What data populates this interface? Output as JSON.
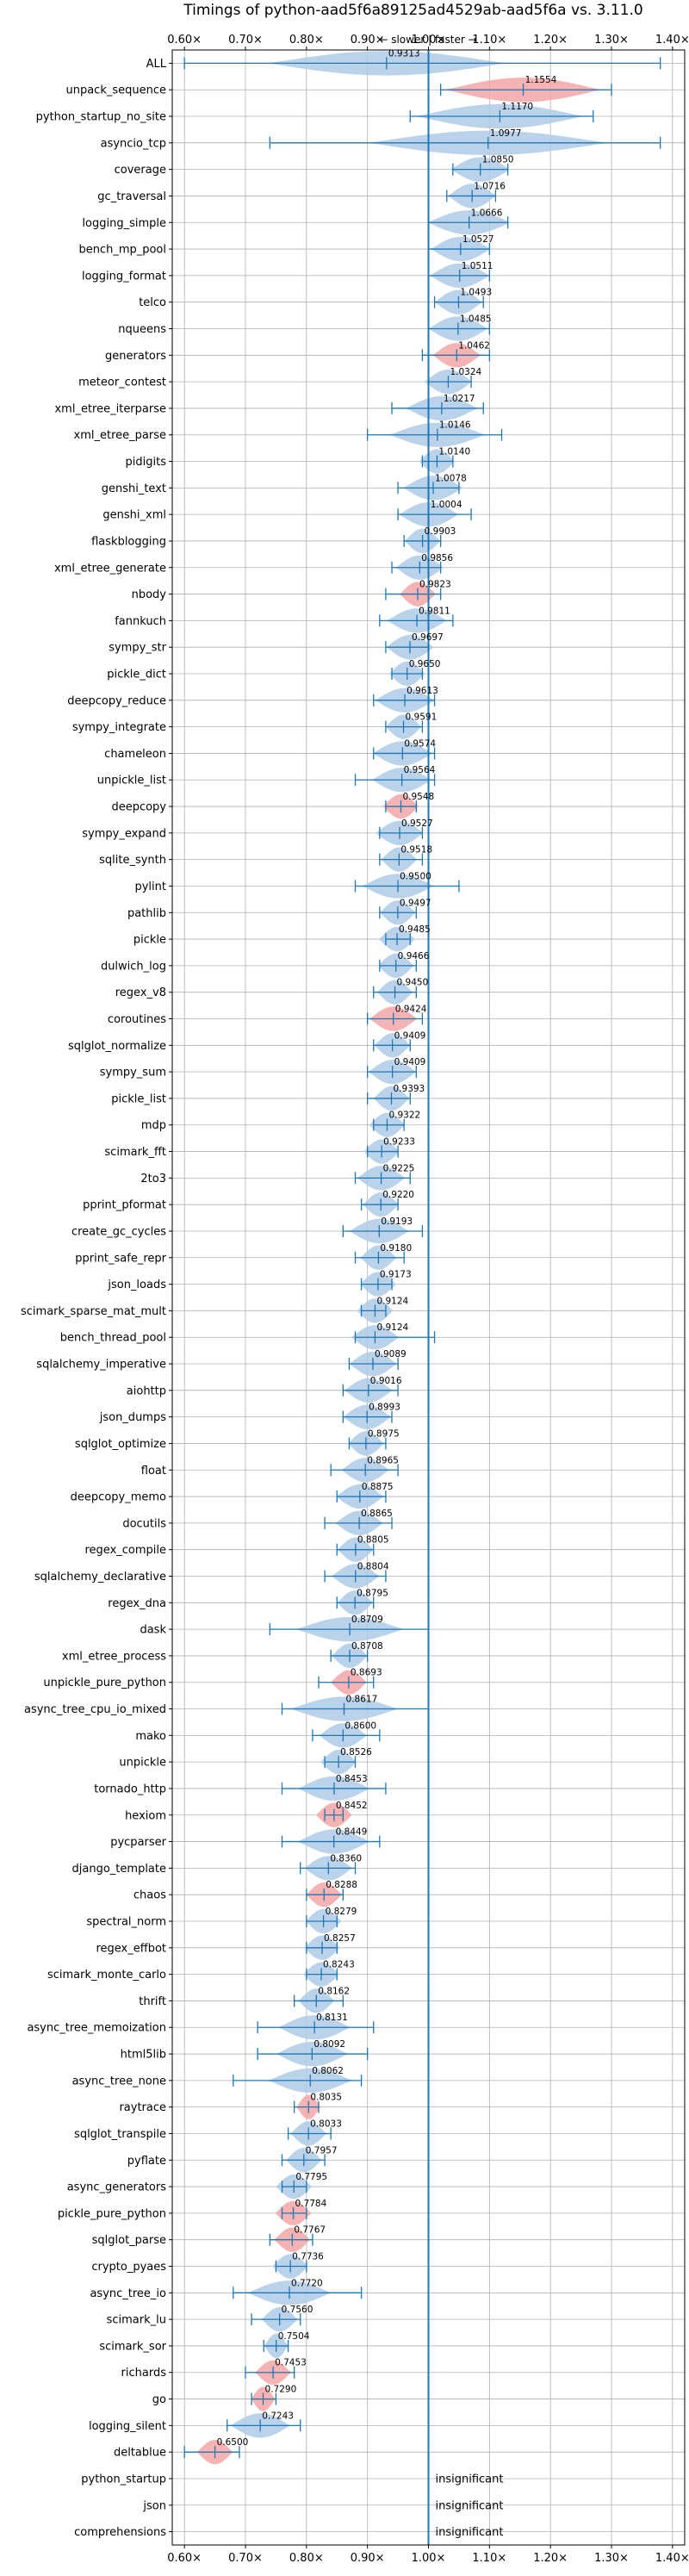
{
  "chart_data": {
    "type": "violin",
    "title": "Timings of python-aad5f6a89125ad4529ab-aad5f6a vs. 3.11.0",
    "direction_hint": "← slower | faster →",
    "xlim": [
      0.58,
      1.42
    ],
    "reference_x": 1.0,
    "grid": true,
    "x_ticks": [
      "0.60×",
      "0.70×",
      "0.80×",
      "0.90×",
      "1.00×",
      "1.10×",
      "1.20×",
      "1.30×",
      "1.40×"
    ],
    "x_tick_values": [
      0.6,
      0.7,
      0.8,
      0.9,
      1.0,
      1.1,
      1.2,
      1.3,
      1.4
    ],
    "insignificant_label": "insignificant",
    "colors": {
      "faster": "#aecbe7",
      "slower": "#f4a6a6",
      "errorbar": "#1f77b4",
      "reference": "#1f77b4",
      "grid": "#b0b0b0"
    },
    "benchmarks": [
      {
        "name": "ALL",
        "value": 0.9313,
        "value_label": "0.9313",
        "lo": 0.6,
        "hi": 1.38,
        "spread": 0.2,
        "color": "faster"
      },
      {
        "name": "unpack_sequence",
        "value": 1.1554,
        "value_label": "1.1554",
        "lo": 1.02,
        "hi": 1.3,
        "spread": 0.13,
        "color": "slower"
      },
      {
        "name": "python_startup_no_site",
        "value": 1.117,
        "value_label": "1.1170",
        "lo": 0.97,
        "hi": 1.27,
        "spread": 0.14,
        "color": "faster"
      },
      {
        "name": "asyncio_tcp",
        "value": 1.0977,
        "value_label": "1.0977",
        "lo": 0.74,
        "hi": 1.38,
        "spread": 0.2,
        "color": "faster"
      },
      {
        "name": "coverage",
        "value": 1.085,
        "value_label": "1.0850",
        "lo": 1.04,
        "hi": 1.13,
        "spread": 0.05,
        "color": "faster"
      },
      {
        "name": "gc_traversal",
        "value": 1.0716,
        "value_label": "1.0716",
        "lo": 1.03,
        "hi": 1.11,
        "spread": 0.04,
        "color": "faster"
      },
      {
        "name": "logging_simple",
        "value": 1.0666,
        "value_label": "1.0666",
        "lo": 1.0,
        "hi": 1.13,
        "spread": 0.07,
        "color": "faster"
      },
      {
        "name": "bench_mp_pool",
        "value": 1.0527,
        "value_label": "1.0527",
        "lo": 1.0,
        "hi": 1.1,
        "spread": 0.05,
        "color": "faster"
      },
      {
        "name": "logging_format",
        "value": 1.0511,
        "value_label": "1.0511",
        "lo": 1.0,
        "hi": 1.1,
        "spread": 0.05,
        "color": "faster"
      },
      {
        "name": "telco",
        "value": 1.0493,
        "value_label": "1.0493",
        "lo": 1.01,
        "hi": 1.09,
        "spread": 0.04,
        "color": "faster"
      },
      {
        "name": "nqueens",
        "value": 1.0485,
        "value_label": "1.0485",
        "lo": 1.0,
        "hi": 1.1,
        "spread": 0.05,
        "color": "faster"
      },
      {
        "name": "generators",
        "value": 1.0462,
        "value_label": "1.0462",
        "lo": 0.99,
        "hi": 1.1,
        "spread": 0.04,
        "color": "slower"
      },
      {
        "name": "meteor_contest",
        "value": 1.0324,
        "value_label": "1.0324",
        "lo": 1.0,
        "hi": 1.07,
        "spread": 0.04,
        "color": "faster"
      },
      {
        "name": "xml_etree_iterparse",
        "value": 1.0217,
        "value_label": "1.0217",
        "lo": 0.94,
        "hi": 1.09,
        "spread": 0.06,
        "color": "faster"
      },
      {
        "name": "xml_etree_parse",
        "value": 1.0146,
        "value_label": "1.0146",
        "lo": 0.9,
        "hi": 1.12,
        "spread": 0.08,
        "color": "faster"
      },
      {
        "name": "pidigits",
        "value": 1.014,
        "value_label": "1.0140",
        "lo": 0.99,
        "hi": 1.04,
        "spread": 0.03,
        "color": "faster"
      },
      {
        "name": "genshi_text",
        "value": 1.0078,
        "value_label": "1.0078",
        "lo": 0.95,
        "hi": 1.05,
        "spread": 0.05,
        "color": "faster"
      },
      {
        "name": "genshi_xml",
        "value": 1.0004,
        "value_label": "1.0004",
        "lo": 0.95,
        "hi": 1.07,
        "spread": 0.05,
        "color": "faster"
      },
      {
        "name": "flaskblogging",
        "value": 0.9903,
        "value_label": "0.9903",
        "lo": 0.96,
        "hi": 1.02,
        "spread": 0.03,
        "color": "faster"
      },
      {
        "name": "xml_etree_generate",
        "value": 0.9856,
        "value_label": "0.9856",
        "lo": 0.94,
        "hi": 1.02,
        "spread": 0.04,
        "color": "faster"
      },
      {
        "name": "nbody",
        "value": 0.9823,
        "value_label": "0.9823",
        "lo": 0.93,
        "hi": 1.02,
        "spread": 0.03,
        "color": "slower"
      },
      {
        "name": "fannkuch",
        "value": 0.9811,
        "value_label": "0.9811",
        "lo": 0.92,
        "hi": 1.04,
        "spread": 0.05,
        "color": "faster"
      },
      {
        "name": "sympy_str",
        "value": 0.9697,
        "value_label": "0.9697",
        "lo": 0.93,
        "hi": 1.0,
        "spread": 0.04,
        "color": "faster"
      },
      {
        "name": "pickle_dict",
        "value": 0.965,
        "value_label": "0.9650",
        "lo": 0.94,
        "hi": 0.99,
        "spread": 0.03,
        "color": "faster"
      },
      {
        "name": "deepcopy_reduce",
        "value": 0.9613,
        "value_label": "0.9613",
        "lo": 0.91,
        "hi": 1.01,
        "spread": 0.05,
        "color": "faster"
      },
      {
        "name": "sympy_integrate",
        "value": 0.9591,
        "value_label": "0.9591",
        "lo": 0.93,
        "hi": 0.99,
        "spread": 0.03,
        "color": "faster"
      },
      {
        "name": "chameleon",
        "value": 0.9574,
        "value_label": "0.9574",
        "lo": 0.91,
        "hi": 1.01,
        "spread": 0.05,
        "color": "faster"
      },
      {
        "name": "unpickle_list",
        "value": 0.9564,
        "value_label": "0.9564",
        "lo": 0.88,
        "hi": 1.01,
        "spread": 0.05,
        "color": "faster"
      },
      {
        "name": "deepcopy",
        "value": 0.9548,
        "value_label": "0.9548",
        "lo": 0.93,
        "hi": 0.98,
        "spread": 0.03,
        "color": "slower"
      },
      {
        "name": "sympy_expand",
        "value": 0.9527,
        "value_label": "0.9527",
        "lo": 0.92,
        "hi": 0.99,
        "spread": 0.04,
        "color": "faster"
      },
      {
        "name": "sqlite_synth",
        "value": 0.9518,
        "value_label": "0.9518",
        "lo": 0.92,
        "hi": 0.99,
        "spread": 0.03,
        "color": "faster"
      },
      {
        "name": "pylint",
        "value": 0.95,
        "value_label": "0.9500",
        "lo": 0.88,
        "hi": 1.05,
        "spread": 0.06,
        "color": "faster"
      },
      {
        "name": "pathlib",
        "value": 0.9497,
        "value_label": "0.9497",
        "lo": 0.92,
        "hi": 0.98,
        "spread": 0.03,
        "color": "faster"
      },
      {
        "name": "pickle",
        "value": 0.9485,
        "value_label": "0.9485",
        "lo": 0.93,
        "hi": 0.97,
        "spread": 0.03,
        "color": "faster"
      },
      {
        "name": "dulwich_log",
        "value": 0.9466,
        "value_label": "0.9466",
        "lo": 0.92,
        "hi": 0.98,
        "spread": 0.03,
        "color": "faster"
      },
      {
        "name": "regex_v8",
        "value": 0.945,
        "value_label": "0.9450",
        "lo": 0.91,
        "hi": 0.98,
        "spread": 0.03,
        "color": "faster"
      },
      {
        "name": "coroutines",
        "value": 0.9424,
        "value_label": "0.9424",
        "lo": 0.9,
        "hi": 0.99,
        "spread": 0.04,
        "color": "slower"
      },
      {
        "name": "sqlglot_normalize",
        "value": 0.9409,
        "value_label": "0.9409",
        "lo": 0.91,
        "hi": 0.97,
        "spread": 0.03,
        "color": "faster"
      },
      {
        "name": "sympy_sum",
        "value": 0.9409,
        "value_label": "0.9409",
        "lo": 0.9,
        "hi": 0.98,
        "spread": 0.04,
        "color": "faster"
      },
      {
        "name": "pickle_list",
        "value": 0.9393,
        "value_label": "0.9393",
        "lo": 0.9,
        "hi": 0.97,
        "spread": 0.03,
        "color": "faster"
      },
      {
        "name": "mdp",
        "value": 0.9322,
        "value_label": "0.9322",
        "lo": 0.91,
        "hi": 0.96,
        "spread": 0.03,
        "color": "faster"
      },
      {
        "name": "scimark_fft",
        "value": 0.9233,
        "value_label": "0.9233",
        "lo": 0.9,
        "hi": 0.95,
        "spread": 0.03,
        "color": "faster"
      },
      {
        "name": "2to3",
        "value": 0.9225,
        "value_label": "0.9225",
        "lo": 0.88,
        "hi": 0.97,
        "spread": 0.04,
        "color": "faster"
      },
      {
        "name": "pprint_pformat",
        "value": 0.922,
        "value_label": "0.9220",
        "lo": 0.89,
        "hi": 0.95,
        "spread": 0.03,
        "color": "faster"
      },
      {
        "name": "create_gc_cycles",
        "value": 0.9193,
        "value_label": "0.9193",
        "lo": 0.86,
        "hi": 0.99,
        "spread": 0.05,
        "color": "faster"
      },
      {
        "name": "pprint_safe_repr",
        "value": 0.918,
        "value_label": "0.9180",
        "lo": 0.88,
        "hi": 0.96,
        "spread": 0.03,
        "color": "faster"
      },
      {
        "name": "json_loads",
        "value": 0.9173,
        "value_label": "0.9173",
        "lo": 0.89,
        "hi": 0.94,
        "spread": 0.03,
        "color": "faster"
      },
      {
        "name": "scimark_sparse_mat_mult",
        "value": 0.9124,
        "value_label": "0.9124",
        "lo": 0.89,
        "hi": 0.93,
        "spread": 0.03,
        "color": "faster"
      },
      {
        "name": "bench_thread_pool",
        "value": 0.9124,
        "value_label": "0.9124",
        "lo": 0.88,
        "hi": 1.01,
        "spread": 0.04,
        "color": "faster"
      },
      {
        "name": "sqlalchemy_imperative",
        "value": 0.9089,
        "value_label": "0.9089",
        "lo": 0.87,
        "hi": 0.95,
        "spread": 0.04,
        "color": "faster"
      },
      {
        "name": "aiohttp",
        "value": 0.9016,
        "value_label": "0.9016",
        "lo": 0.86,
        "hi": 0.95,
        "spread": 0.04,
        "color": "faster"
      },
      {
        "name": "json_dumps",
        "value": 0.8993,
        "value_label": "0.8993",
        "lo": 0.86,
        "hi": 0.94,
        "spread": 0.04,
        "color": "faster"
      },
      {
        "name": "sqlglot_optimize",
        "value": 0.8975,
        "value_label": "0.8975",
        "lo": 0.87,
        "hi": 0.93,
        "spread": 0.03,
        "color": "faster"
      },
      {
        "name": "float",
        "value": 0.8965,
        "value_label": "0.8965",
        "lo": 0.84,
        "hi": 0.95,
        "spread": 0.04,
        "color": "faster"
      },
      {
        "name": "deepcopy_memo",
        "value": 0.8875,
        "value_label": "0.8875",
        "lo": 0.85,
        "hi": 0.93,
        "spread": 0.04,
        "color": "faster"
      },
      {
        "name": "docutils",
        "value": 0.8865,
        "value_label": "0.8865",
        "lo": 0.83,
        "hi": 0.94,
        "spread": 0.04,
        "color": "faster"
      },
      {
        "name": "regex_compile",
        "value": 0.8805,
        "value_label": "0.8805",
        "lo": 0.85,
        "hi": 0.91,
        "spread": 0.03,
        "color": "faster"
      },
      {
        "name": "sqlalchemy_declarative",
        "value": 0.8804,
        "value_label": "0.8804",
        "lo": 0.83,
        "hi": 0.93,
        "spread": 0.04,
        "color": "faster"
      },
      {
        "name": "regex_dna",
        "value": 0.8795,
        "value_label": "0.8795",
        "lo": 0.85,
        "hi": 0.91,
        "spread": 0.03,
        "color": "faster"
      },
      {
        "name": "dask",
        "value": 0.8709,
        "value_label": "0.8709",
        "lo": 0.74,
        "hi": 1.0,
        "spread": 0.09,
        "color": "faster"
      },
      {
        "name": "xml_etree_process",
        "value": 0.8708,
        "value_label": "0.8708",
        "lo": 0.84,
        "hi": 0.9,
        "spread": 0.03,
        "color": "faster"
      },
      {
        "name": "unpickle_pure_python",
        "value": 0.8693,
        "value_label": "0.8693",
        "lo": 0.82,
        "hi": 0.91,
        "spread": 0.03,
        "color": "slower"
      },
      {
        "name": "async_tree_cpu_io_mixed",
        "value": 0.8617,
        "value_label": "0.8617",
        "lo": 0.76,
        "hi": 1.0,
        "spread": 0.09,
        "color": "faster"
      },
      {
        "name": "mako",
        "value": 0.86,
        "value_label": "0.8600",
        "lo": 0.81,
        "hi": 0.92,
        "spread": 0.04,
        "color": "faster"
      },
      {
        "name": "unpickle",
        "value": 0.8526,
        "value_label": "0.8526",
        "lo": 0.83,
        "hi": 0.88,
        "spread": 0.03,
        "color": "faster"
      },
      {
        "name": "tornado_http",
        "value": 0.8453,
        "value_label": "0.8453",
        "lo": 0.76,
        "hi": 0.93,
        "spread": 0.06,
        "color": "faster"
      },
      {
        "name": "hexiom",
        "value": 0.8452,
        "value_label": "0.8452",
        "lo": 0.83,
        "hi": 0.86,
        "spread": 0.03,
        "color": "slower"
      },
      {
        "name": "pycparser",
        "value": 0.8449,
        "value_label": "0.8449",
        "lo": 0.76,
        "hi": 0.92,
        "spread": 0.06,
        "color": "faster"
      },
      {
        "name": "django_template",
        "value": 0.836,
        "value_label": "0.8360",
        "lo": 0.79,
        "hi": 0.88,
        "spread": 0.04,
        "color": "faster"
      },
      {
        "name": "chaos",
        "value": 0.8288,
        "value_label": "0.8288",
        "lo": 0.8,
        "hi": 0.86,
        "spread": 0.03,
        "color": "slower"
      },
      {
        "name": "spectral_norm",
        "value": 0.8279,
        "value_label": "0.8279",
        "lo": 0.8,
        "hi": 0.85,
        "spread": 0.03,
        "color": "faster"
      },
      {
        "name": "regex_effbot",
        "value": 0.8257,
        "value_label": "0.8257",
        "lo": 0.8,
        "hi": 0.85,
        "spread": 0.03,
        "color": "faster"
      },
      {
        "name": "scimark_monte_carlo",
        "value": 0.8243,
        "value_label": "0.8243",
        "lo": 0.8,
        "hi": 0.85,
        "spread": 0.03,
        "color": "faster"
      },
      {
        "name": "thrift",
        "value": 0.8162,
        "value_label": "0.8162",
        "lo": 0.78,
        "hi": 0.86,
        "spread": 0.03,
        "color": "faster"
      },
      {
        "name": "async_tree_memoization",
        "value": 0.8131,
        "value_label": "0.8131",
        "lo": 0.72,
        "hi": 0.91,
        "spread": 0.06,
        "color": "faster"
      },
      {
        "name": "html5lib",
        "value": 0.8092,
        "value_label": "0.8092",
        "lo": 0.72,
        "hi": 0.9,
        "spread": 0.06,
        "color": "faster"
      },
      {
        "name": "async_tree_none",
        "value": 0.8062,
        "value_label": "0.8062",
        "lo": 0.68,
        "hi": 0.89,
        "spread": 0.07,
        "color": "faster"
      },
      {
        "name": "raytrace",
        "value": 0.8035,
        "value_label": "0.8035",
        "lo": 0.78,
        "hi": 0.82,
        "spread": 0.02,
        "color": "slower"
      },
      {
        "name": "sqlglot_transpile",
        "value": 0.8033,
        "value_label": "0.8033",
        "lo": 0.77,
        "hi": 0.84,
        "spread": 0.03,
        "color": "faster"
      },
      {
        "name": "pyflate",
        "value": 0.7957,
        "value_label": "0.7957",
        "lo": 0.76,
        "hi": 0.83,
        "spread": 0.03,
        "color": "faster"
      },
      {
        "name": "async_generators",
        "value": 0.7795,
        "value_label": "0.7795",
        "lo": 0.76,
        "hi": 0.8,
        "spread": 0.03,
        "color": "faster"
      },
      {
        "name": "pickle_pure_python",
        "value": 0.7784,
        "value_label": "0.7784",
        "lo": 0.76,
        "hi": 0.8,
        "spread": 0.03,
        "color": "slower"
      },
      {
        "name": "sqlglot_parse",
        "value": 0.7767,
        "value_label": "0.7767",
        "lo": 0.74,
        "hi": 0.81,
        "spread": 0.03,
        "color": "slower"
      },
      {
        "name": "crypto_pyaes",
        "value": 0.7736,
        "value_label": "0.7736",
        "lo": 0.75,
        "hi": 0.8,
        "spread": 0.03,
        "color": "faster"
      },
      {
        "name": "async_tree_io",
        "value": 0.772,
        "value_label": "0.7720",
        "lo": 0.68,
        "hi": 0.89,
        "spread": 0.07,
        "color": "faster"
      },
      {
        "name": "scimark_lu",
        "value": 0.756,
        "value_label": "0.7560",
        "lo": 0.71,
        "hi": 0.79,
        "spread": 0.03,
        "color": "faster"
      },
      {
        "name": "scimark_sor",
        "value": 0.7504,
        "value_label": "0.7504",
        "lo": 0.73,
        "hi": 0.77,
        "spread": 0.02,
        "color": "faster"
      },
      {
        "name": "richards",
        "value": 0.7453,
        "value_label": "0.7453",
        "lo": 0.7,
        "hi": 0.78,
        "spread": 0.03,
        "color": "slower"
      },
      {
        "name": "go",
        "value": 0.729,
        "value_label": "0.7290",
        "lo": 0.71,
        "hi": 0.75,
        "spread": 0.02,
        "color": "slower"
      },
      {
        "name": "logging_silent",
        "value": 0.7243,
        "value_label": "0.7243",
        "lo": 0.67,
        "hi": 0.79,
        "spread": 0.05,
        "color": "faster"
      },
      {
        "name": "deltablue",
        "value": 0.65,
        "value_label": "0.6500",
        "lo": 0.6,
        "hi": 0.69,
        "spread": 0.03,
        "color": "slower"
      },
      {
        "name": "python_startup",
        "value": null,
        "value_label": "insignificant"
      },
      {
        "name": "json",
        "value": null,
        "value_label": "insignificant"
      },
      {
        "name": "comprehensions",
        "value": null,
        "value_label": "insignificant"
      }
    ]
  }
}
